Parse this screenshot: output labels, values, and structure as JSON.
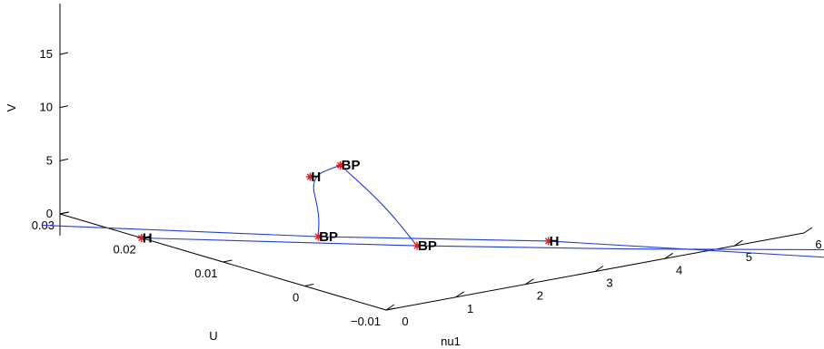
{
  "chart_data": {
    "type": "line",
    "projection": "3d",
    "xlabel": "nu1",
    "ylabel": "U",
    "zlabel": "V",
    "xlim": [
      0,
      6
    ],
    "ylim": [
      -0.01,
      0.03
    ],
    "zlim": [
      -1,
      18
    ],
    "x_ticks": [
      0,
      1,
      2,
      3,
      4,
      5,
      6
    ],
    "y_ticks": [
      -0.01,
      0,
      0.01,
      0.02,
      0.03
    ],
    "z_ticks": [
      0,
      5,
      10,
      15
    ],
    "x_tick_labels": [
      "0",
      "1",
      "2",
      "3",
      "4",
      "5",
      "6"
    ],
    "y_tick_labels": [
      "−0.01",
      "0",
      "0.01",
      "0.02",
      "0.03"
    ],
    "z_tick_labels": [
      "0",
      "5",
      "10",
      "15"
    ],
    "line_color": "#1f3fd8",
    "marker_color": "#e02020",
    "series": [
      {
        "points": [
          [
            0,
            0.02,
            0
          ],
          [
            2.2,
            0.005,
            0
          ],
          [
            4.0,
            -0.006,
            0
          ],
          [
            6,
            -0.017,
            0
          ]
        ]
      },
      {
        "points": [
          [
            -0.5,
            0.028,
            0
          ],
          [
            1.6,
            0.012,
            0
          ],
          [
            3.5,
            0.0,
            0
          ],
          [
            6,
            -0.022,
            0
          ]
        ]
      },
      {
        "points": [
          [
            1.6,
            0.012,
            0
          ],
          [
            1.5,
            0.011,
            2.5
          ],
          [
            1.25,
            0.01,
            6.5
          ],
          [
            1.45,
            0.008,
            7.8
          ]
        ]
      },
      {
        "points": [
          [
            1.45,
            0.008,
            7.8
          ],
          [
            1.85,
            0.006,
            4.0
          ],
          [
            2.2,
            0.005,
            0
          ]
        ]
      }
    ],
    "special_points": [
      {
        "label": "H",
        "coords": [
          1.25,
          0.01,
          6.5
        ]
      },
      {
        "label": "BP",
        "coords": [
          1.45,
          0.008,
          7.8
        ]
      },
      {
        "label": "BP",
        "coords": [
          1.6,
          0.012,
          0
        ]
      },
      {
        "label": "BP",
        "coords": [
          2.2,
          0.005,
          0
        ]
      },
      {
        "label": "H",
        "coords": [
          0,
          0.02,
          0
        ]
      },
      {
        "label": "H",
        "coords": [
          3.5,
          0.0,
          0
        ]
      }
    ]
  }
}
